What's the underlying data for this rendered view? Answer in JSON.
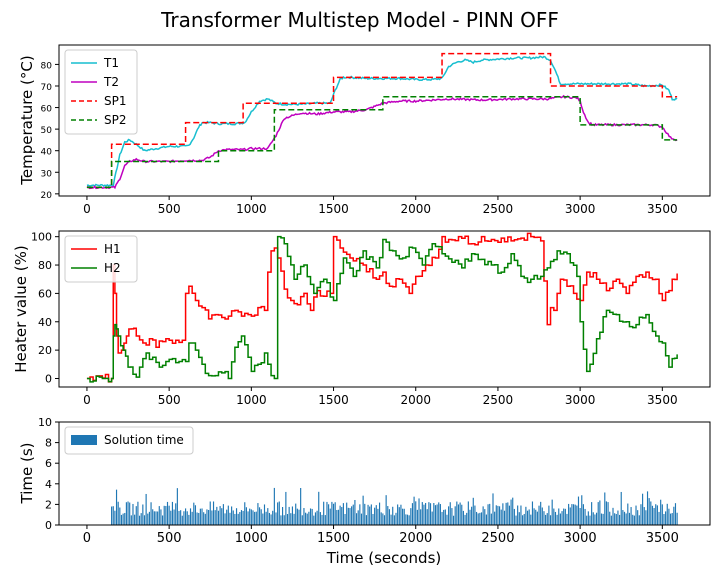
{
  "title": "Transformer Multistep Model - PINN OFF",
  "chart_data": [
    {
      "type": "line",
      "ylabel": "Temperature (°C)",
      "xlim": [
        -170,
        3790
      ],
      "ylim": [
        19,
        89
      ],
      "xticks": [
        0,
        500,
        1000,
        1500,
        2000,
        2500,
        3000,
        3500
      ],
      "yticks": [
        20,
        30,
        40,
        50,
        60,
        70,
        80
      ],
      "legend_position": "upper-left",
      "series": [
        {
          "name": "T1",
          "color": "#17becf",
          "style": "solid",
          "x": [
            0,
            140,
            160,
            200,
            230,
            260,
            300,
            350,
            420,
            500,
            560,
            600,
            620,
            650,
            680,
            700,
            750,
            800,
            850,
            900,
            960,
            1000,
            1050,
            1100,
            1150,
            1200,
            1250,
            1300,
            1400,
            1480,
            1510,
            1540,
            1560,
            1600,
            1700,
            1800,
            1900,
            2000,
            2100,
            2160,
            2200,
            2250,
            2300,
            2350,
            2400,
            2500,
            2600,
            2700,
            2780,
            2820,
            2850,
            2880,
            2950,
            3000,
            3100,
            3200,
            3300,
            3400,
            3500,
            3540,
            3560,
            3590
          ],
          "y": [
            24,
            24,
            24,
            38,
            44,
            45,
            43,
            40,
            41,
            42,
            42,
            42,
            42.5,
            46,
            51,
            53,
            53,
            52.5,
            52.5,
            52.5,
            53,
            58,
            63,
            64,
            62,
            61.5,
            61.5,
            61.5,
            62,
            62,
            68,
            73,
            74,
            74,
            73.5,
            73.5,
            73.5,
            73,
            73,
            73.5,
            79,
            81,
            82,
            81,
            82,
            82.5,
            83,
            83,
            83.5,
            82,
            77,
            71,
            71,
            71,
            71,
            71,
            71,
            70,
            70.5,
            68,
            64,
            64
          ]
        },
        {
          "name": "T2",
          "color": "#bf00bf",
          "style": "solid",
          "x": [
            0,
            150,
            170,
            200,
            230,
            260,
            300,
            350,
            400,
            500,
            600,
            700,
            750,
            800,
            850,
            900,
            950,
            1000,
            1050,
            1100,
            1150,
            1200,
            1300,
            1400,
            1500,
            1600,
            1700,
            1800,
            1900,
            2000,
            2200,
            2400,
            2600,
            2800,
            2900,
            2980,
            3000,
            3020,
            3050,
            3080,
            3100,
            3200,
            3300,
            3400,
            3450,
            3500,
            3550,
            3590
          ],
          "y": [
            23,
            23,
            23,
            27,
            33,
            35,
            36,
            35,
            35,
            35,
            35.5,
            35.5,
            37,
            40,
            40.5,
            40.5,
            40.5,
            41,
            41,
            41,
            47,
            55,
            57.5,
            57,
            58,
            58,
            59,
            62,
            63,
            63,
            64,
            63.5,
            64,
            64,
            65,
            64.5,
            63,
            58,
            53,
            52,
            52,
            52,
            52,
            52,
            52,
            51,
            46,
            45
          ]
        },
        {
          "name": "SP1",
          "color": "#ff0000",
          "style": "dashed",
          "x": [
            0,
            150,
            150,
            600,
            600,
            950,
            950,
            1500,
            1500,
            2160,
            2160,
            2820,
            2820,
            3500,
            3500,
            3590
          ],
          "y": [
            23,
            23,
            43,
            43,
            53,
            53,
            62,
            62,
            74,
            74,
            85,
            85,
            70,
            70,
            65,
            65
          ]
        },
        {
          "name": "SP2",
          "color": "#008000",
          "style": "dashed",
          "x": [
            0,
            150,
            150,
            800,
            800,
            1140,
            1140,
            1800,
            1800,
            3000,
            3000,
            3500,
            3500,
            3590
          ],
          "y": [
            23,
            23,
            35,
            35,
            40,
            40,
            59,
            59,
            65,
            65,
            52,
            52,
            45,
            45
          ]
        }
      ]
    },
    {
      "type": "line",
      "ylabel": "Heater value (%)",
      "xlim": [
        -170,
        3790
      ],
      "ylim": [
        -6,
        104
      ],
      "xticks": [
        0,
        500,
        1000,
        1500,
        2000,
        2500,
        3000,
        3500
      ],
      "yticks": [
        0,
        20,
        40,
        60,
        80,
        100
      ],
      "legend_position": "upper-left",
      "series": [
        {
          "name": "H1",
          "color": "#ff0000",
          "style": "step",
          "x": [
            0,
            150,
            160,
            170,
            180,
            190,
            210,
            240,
            270,
            300,
            340,
            380,
            420,
            460,
            500,
            540,
            580,
            600,
            620,
            660,
            700,
            740,
            780,
            820,
            860,
            900,
            940,
            980,
            1000,
            1040,
            1080,
            1100,
            1120,
            1140,
            1160,
            1200,
            1240,
            1280,
            1320,
            1360,
            1400,
            1440,
            1480,
            1500,
            1540,
            1600,
            1680,
            1760,
            1800,
            1840,
            1900,
            1960,
            2000,
            2060,
            2120,
            2160,
            2200,
            2260,
            2340,
            2400,
            2460,
            2520,
            2580,
            2640,
            2700,
            2760,
            2800,
            2820,
            2840,
            2860,
            2880,
            2920,
            2960,
            3000,
            3040,
            3100,
            3160,
            3220,
            3280,
            3340,
            3400,
            3460,
            3500,
            3540,
            3560,
            3590
          ],
          "y": [
            0,
            0,
            80,
            60,
            30,
            18,
            20,
            30,
            35,
            30,
            25,
            28,
            22,
            26,
            27,
            27,
            27,
            60,
            65,
            55,
            50,
            42,
            45,
            43,
            44,
            48,
            44,
            45,
            44,
            50,
            48,
            75,
            90,
            92,
            85,
            63,
            55,
            52,
            60,
            48,
            62,
            58,
            60,
            100,
            92,
            85,
            80,
            70,
            75,
            65,
            70,
            60,
            72,
            80,
            85,
            100,
            98,
            100,
            95,
            100,
            98,
            99,
            97,
            99,
            100,
            97,
            38,
            50,
            48,
            60,
            70,
            65,
            60,
            55,
            75,
            70,
            62,
            70,
            60,
            72,
            75,
            70,
            55,
            62,
            70,
            74
          ]
        },
        {
          "name": "H2",
          "color": "#008000",
          "style": "step",
          "x": [
            0,
            150,
            160,
            170,
            180,
            190,
            220,
            250,
            280,
            300,
            320,
            360,
            400,
            440,
            480,
            520,
            560,
            600,
            620,
            660,
            700,
            740,
            780,
            820,
            860,
            900,
            940,
            980,
            1000,
            1040,
            1080,
            1100,
            1120,
            1140,
            1160,
            1200,
            1260,
            1320,
            1380,
            1440,
            1500,
            1560,
            1620,
            1680,
            1760,
            1800,
            1860,
            1920,
            1980,
            2040,
            2100,
            2160,
            2220,
            2280,
            2340,
            2400,
            2460,
            2520,
            2580,
            2640,
            2700,
            2760,
            2800,
            2860,
            2920,
            2980,
            3000,
            3040,
            3060,
            3100,
            3160,
            3220,
            3280,
            3340,
            3400,
            3460,
            3500,
            3540,
            3560,
            3590
          ],
          "y": [
            0,
            0,
            30,
            38,
            35,
            30,
            20,
            8,
            3,
            1,
            8,
            18,
            15,
            8,
            12,
            14,
            12,
            12,
            25,
            20,
            10,
            2,
            2,
            4,
            0,
            22,
            30,
            15,
            5,
            10,
            18,
            10,
            2,
            0,
            100,
            95,
            70,
            80,
            60,
            70,
            55,
            85,
            72,
            90,
            78,
            98,
            90,
            85,
            92,
            80,
            95,
            88,
            82,
            78,
            88,
            84,
            80,
            75,
            88,
            72,
            70,
            72,
            78,
            90,
            88,
            72,
            40,
            5,
            10,
            28,
            48,
            45,
            40,
            38,
            45,
            30,
            25,
            8,
            14,
            17
          ]
        }
      ]
    },
    {
      "type": "bar",
      "xlabel": "Time (seconds)",
      "ylabel": "Time (s)",
      "xlim": [
        -170,
        3790
      ],
      "ylim": [
        0,
        10
      ],
      "xticks": [
        0,
        500,
        1000,
        1500,
        2000,
        2500,
        3000,
        3500
      ],
      "yticks": [
        0,
        2,
        4,
        6,
        8,
        10
      ],
      "legend_position": "upper-left",
      "series": [
        {
          "name": "Solution time",
          "color": "#1f77b4",
          "x_start": 150,
          "x_end": 3590,
          "step": 10,
          "typical": 1.6,
          "peak": 3.6
        }
      ]
    }
  ]
}
